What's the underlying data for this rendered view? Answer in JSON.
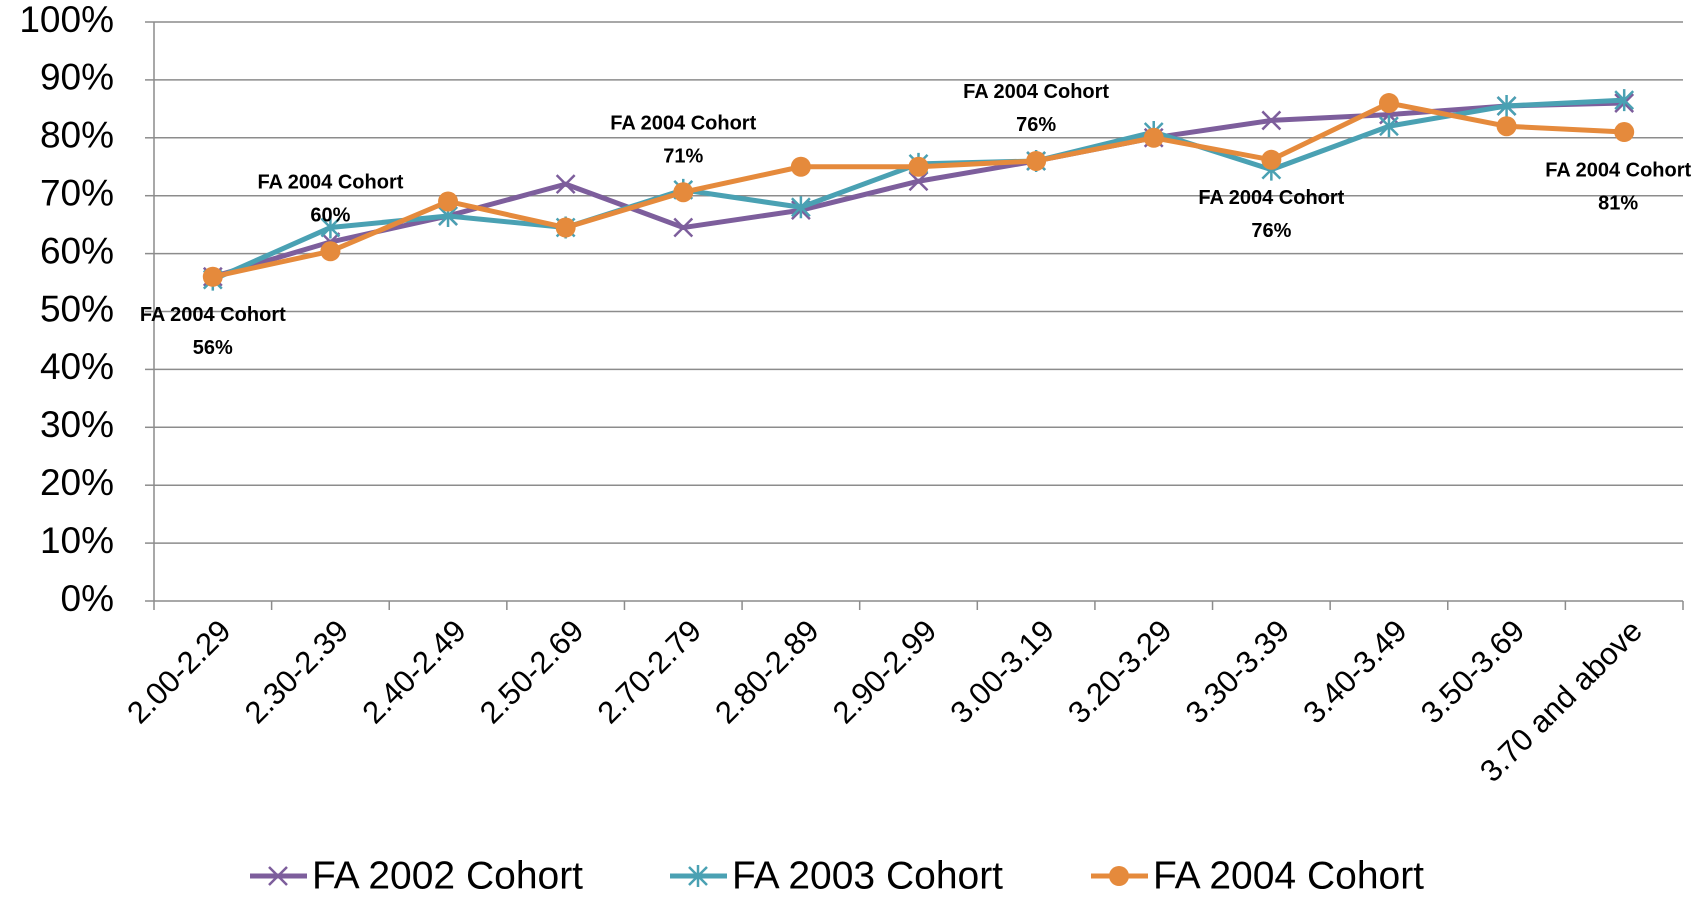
{
  "chart_data": {
    "type": "line",
    "categories": [
      "2.00-2.29",
      "2.30-2.39",
      "2.40-2.49",
      "2.50-2.69",
      "2.70-2.79",
      "2.80-2.89",
      "2.90-2.99",
      "3.00-3.19",
      "3.20-3.29",
      "3.30-3.39",
      "3.40-3.49",
      "3.50-3.69",
      "3.70 and above"
    ],
    "series": [
      {
        "name": "FA 2002 Cohort",
        "color": "#7d5e9c",
        "marker": "x",
        "values": [
          56,
          62,
          66.5,
          72,
          64.5,
          67.5,
          72.5,
          76,
          80,
          83,
          84,
          85.5,
          86
        ]
      },
      {
        "name": "FA 2003 Cohort",
        "color": "#4aa1b3",
        "marker": "asterisk",
        "values": [
          55.5,
          64.5,
          66.5,
          64.5,
          71,
          68,
          75.5,
          76,
          81,
          74.5,
          82,
          85.5,
          86.5
        ]
      },
      {
        "name": "FA 2004 Cohort",
        "color": "#e58a3c",
        "marker": "circle",
        "values": [
          56,
          60.4,
          69,
          64.5,
          70.6,
          75,
          75,
          76,
          80,
          76.2,
          86,
          82,
          81
        ],
        "value_labels": [
          "56%",
          "60%",
          null,
          null,
          "71%",
          null,
          null,
          "76%",
          null,
          "76%",
          null,
          null,
          "81%"
        ]
      }
    ],
    "ylim": [
      0,
      100
    ],
    "yticks": [
      {
        "value": 0,
        "label": "0%"
      },
      {
        "value": 10,
        "label": "10%"
      },
      {
        "value": 20,
        "label": "20%"
      },
      {
        "value": 30,
        "label": "30%"
      },
      {
        "value": 40,
        "label": "40%"
      },
      {
        "value": 50,
        "label": "50%"
      },
      {
        "value": 60,
        "label": "60%"
      },
      {
        "value": 70,
        "label": "70%"
      },
      {
        "value": 80,
        "label": "80%"
      },
      {
        "value": 90,
        "label": "90%"
      },
      {
        "value": 100,
        "label": "100%"
      }
    ],
    "grid": true,
    "legend": "bottom"
  }
}
